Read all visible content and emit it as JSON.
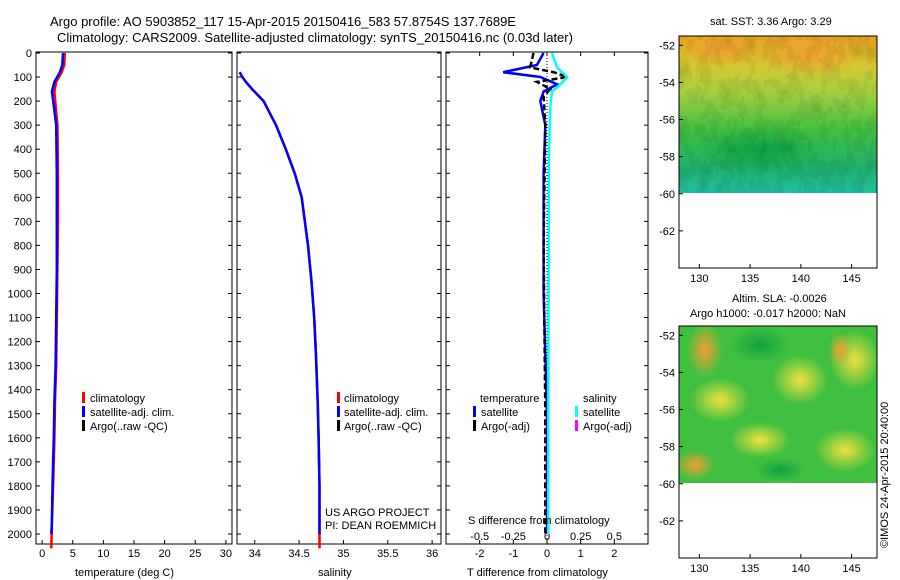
{
  "title_line1": "Argo profile: AO 5903852_117 15-Apr-2015 20150416_583 57.8754S 137.7689E",
  "title_line2": "Climatology: CARS2009. Satellite-adjusted climatology: synTS_20150416.nc (0.03d later)",
  "legend_common": [
    "climatology",
    "satellite-adj. clim.",
    "Argo(..raw -QC)"
  ],
  "legend_diff": {
    "temperature_header": "temperature",
    "salinity_header": "salinity",
    "items": [
      "satellite",
      "Argo(-adj)",
      "satellite",
      "Argo(-adj)"
    ]
  },
  "project_text": [
    "US ARGO PROJECT",
    "PI: DEAN ROEMMICH"
  ],
  "sst_title": "sat. SST: 3.36 Argo: 3.29",
  "sla_title_1": "Altim. SLA: -0.0026",
  "sla_title_2": "Argo h1000: -0.017 h2000: NaN",
  "watermark": "©IMOS 24-Apr-2015 20:40:00",
  "colors": {
    "climatology": "#ff0000",
    "satellite_adj": "#0000ff",
    "argo": "#000000",
    "temp_satellite": "#0000ff",
    "sal_satellite": "#00ffff",
    "sal_argo": "#ff00ff"
  },
  "chart_data": [
    {
      "type": "line",
      "xlabel": "temperature (deg C)",
      "ylabel": "",
      "xlim": [
        -1,
        31
      ],
      "ylim": [
        2060,
        0
      ],
      "xticks": [
        0,
        5,
        10,
        15,
        20,
        25,
        30
      ],
      "yticks": [
        0,
        100,
        200,
        300,
        400,
        500,
        600,
        700,
        800,
        900,
        1000,
        1100,
        1200,
        1300,
        1400,
        1500,
        1600,
        1700,
        1800,
        1900,
        2000
      ],
      "series": [
        {
          "name": "climatology",
          "x": [
            3.7,
            3.6,
            3.2,
            2.3,
            2.0,
            2.2,
            2.5,
            2.6,
            2.6,
            2.5,
            2.4,
            2.3,
            2.1,
            2.0,
            1.9,
            1.8,
            1.6,
            1.5
          ],
          "y": [
            0,
            50,
            80,
            120,
            160,
            220,
            300,
            500,
            700,
            900,
            1100,
            1300,
            1450,
            1600,
            1700,
            1800,
            1950,
            2060
          ]
        },
        {
          "name": "satellite-adj. clim.",
          "x": [
            3.4,
            3.3,
            2.9,
            2.0,
            1.6,
            1.9,
            2.3,
            2.4,
            2.4,
            2.4,
            2.3,
            2.2,
            2.0,
            1.9,
            1.8,
            1.7,
            1.6,
            1.5
          ],
          "y": [
            0,
            50,
            80,
            120,
            160,
            220,
            300,
            500,
            700,
            900,
            1100,
            1300,
            1450,
            1600,
            1700,
            1800,
            1950,
            2000
          ]
        }
      ]
    },
    {
      "type": "line",
      "xlabel": "salinity",
      "ylabel": "",
      "xlim": [
        33.8,
        36.1
      ],
      "ylim": [
        2060,
        0
      ],
      "xticks": [
        34,
        34.5,
        35,
        35.5,
        36
      ],
      "xtick_labels": [
        "34",
        "34.5",
        "35",
        "35.5",
        "36"
      ],
      "series": [
        {
          "name": "climatology",
          "x": [
            33.83,
            33.86,
            33.9,
            33.97,
            34.1,
            34.24,
            34.35,
            34.45,
            34.53,
            34.6,
            34.64,
            34.67,
            34.69,
            34.71,
            34.72,
            34.73,
            34.73
          ],
          "y": [
            80,
            100,
            120,
            150,
            200,
            300,
            400,
            500,
            600,
            800,
            950,
            1100,
            1250,
            1450,
            1600,
            1800,
            2060
          ]
        },
        {
          "name": "satellite-adj. clim.",
          "x": [
            33.83,
            33.86,
            33.9,
            33.97,
            34.1,
            34.24,
            34.35,
            34.45,
            34.53,
            34.6,
            34.64,
            34.67,
            34.69,
            34.71,
            34.72,
            34.73,
            34.73
          ],
          "y": [
            80,
            100,
            120,
            150,
            200,
            300,
            400,
            500,
            600,
            800,
            950,
            1100,
            1250,
            1450,
            1600,
            1800,
            2000
          ]
        }
      ]
    },
    {
      "type": "line",
      "xlabel": "T difference from climatology",
      "top_label": "S difference from climatology",
      "xlim": [
        -3,
        3
      ],
      "ylim": [
        2060,
        0
      ],
      "xticks": [
        -2,
        -1,
        0,
        1,
        2
      ],
      "top_ticks": [
        -0.5,
        -0.25,
        0,
        0.25,
        0.5
      ],
      "top_tick_labels": [
        "-0.5",
        "-0.25",
        "0",
        "0.25",
        "0.5"
      ],
      "series": [
        {
          "name": "temperature satellite",
          "x": [
            -0.1,
            -0.3,
            -1.3,
            -0.2,
            0.3,
            -0.1,
            -0.2,
            -0.05,
            -0.1,
            -0.1,
            0,
            0
          ],
          "y": [
            0,
            50,
            80,
            100,
            130,
            160,
            200,
            300,
            500,
            1000,
            1500,
            2000
          ]
        },
        {
          "name": "temperature Argo(-adj)",
          "x": [
            -0.4,
            -0.5,
            0.2,
            0.6,
            -0.3,
            0.1,
            -0.1,
            -0.05,
            -0.1,
            -0.05,
            -0.05
          ],
          "y": [
            0,
            60,
            80,
            100,
            120,
            150,
            180,
            300,
            800,
            1500,
            2000
          ]
        },
        {
          "name": "salinity satellite",
          "x": [
            0.15,
            0.3,
            0.6,
            0.4,
            0.15,
            0.1,
            0.06,
            0.05,
            0.04,
            0.04
          ],
          "y": [
            0,
            60,
            100,
            130,
            160,
            220,
            400,
            800,
            1500,
            2000
          ]
        }
      ]
    }
  ],
  "map_sst": {
    "title": "sat. SST: 3.36 Argo: 3.29",
    "xticks": [
      130,
      135,
      140,
      145
    ],
    "yticks": [
      -52,
      -54,
      -56,
      -58,
      -60,
      -62
    ],
    "xlim": [
      128,
      147.5
    ],
    "ylim": [
      -64,
      -51.5
    ],
    "data_south_limit": -60
  },
  "map_sla": {
    "title": "Altim. SLA: -0.0026 / Argo h1000: -0.017 h2000: NaN",
    "xticks": [
      130,
      135,
      140,
      145
    ],
    "yticks": [
      -52,
      -54,
      -56,
      -58,
      -60,
      -62
    ],
    "xlim": [
      128,
      147.5
    ],
    "ylim": [
      -64,
      -51.5
    ],
    "data_south_limit": -60
  }
}
